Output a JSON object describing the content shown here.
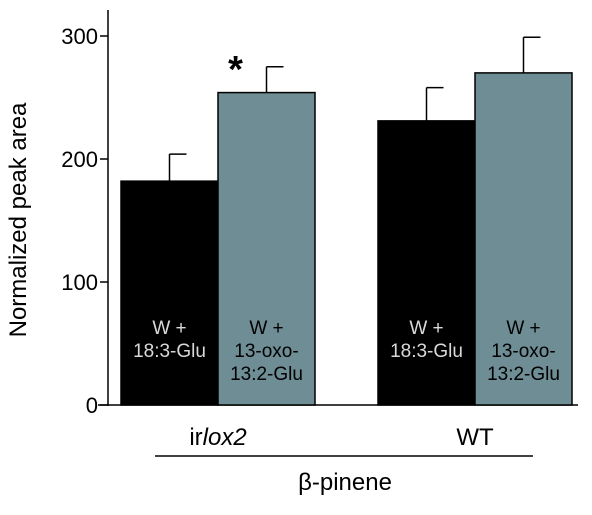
{
  "chart_data": {
    "type": "bar",
    "ylabel": "Normalized peak area",
    "xlabel": "β-pinene",
    "ylim": [
      0,
      300
    ],
    "yticks": [
      0,
      100,
      200,
      300
    ],
    "grid": false,
    "groups": [
      {
        "label_prefix": "ir",
        "label_italic": "lox2",
        "bars": [
          {
            "label_lines": [
              "W +",
              "18:3-Glu"
            ],
            "value": 182,
            "error": 22,
            "color": "#000000",
            "text_color": "#d9d9d9"
          },
          {
            "label_lines": [
              "W +",
              "13-oxo-",
              "13:2-Glu"
            ],
            "value": 254,
            "error": 21,
            "color": "#6e8d94",
            "text_color": "#000000",
            "annotation": "*"
          }
        ]
      },
      {
        "label_prefix": "WT",
        "label_italic": "",
        "bars": [
          {
            "label_lines": [
              "W +",
              "18:3-Glu"
            ],
            "value": 231,
            "error": 27,
            "color": "#000000",
            "text_color": "#d9d9d9"
          },
          {
            "label_lines": [
              "W +",
              "13-oxo-",
              "13:2-Glu"
            ],
            "value": 270,
            "error": 29,
            "color": "#6e8d94",
            "text_color": "#000000"
          }
        ]
      }
    ]
  }
}
